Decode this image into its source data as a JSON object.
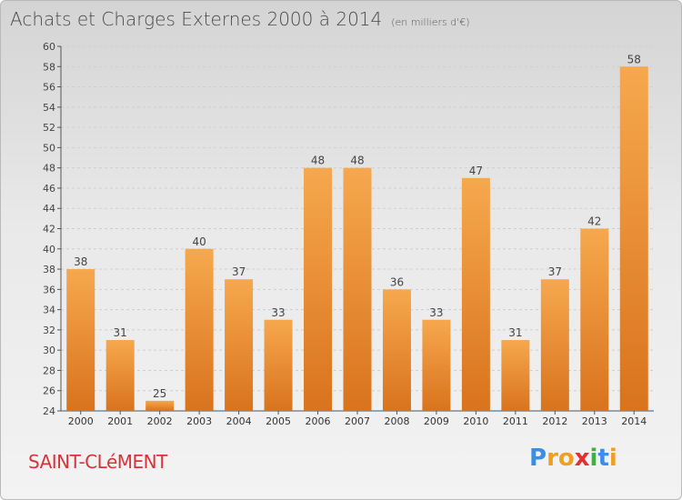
{
  "title": "Achats et Charges Externes 2000 à 2014",
  "unit": "(en milliers d'€)",
  "commune": "SAINT-CLéMENT",
  "logo": {
    "letters": [
      "P",
      "r",
      "o",
      "x",
      "i",
      "t",
      "i"
    ],
    "colors": [
      "#3a8ee6",
      "#f0a020",
      "#f0a020",
      "#e03030",
      "#40b040",
      "#3a8ee6",
      "#f0a020"
    ]
  },
  "colors": {
    "bar_top": "#f6a84e",
    "bar_bottom": "#d9731d",
    "grid": "#cfcfcf"
  },
  "chart_data": {
    "type": "bar",
    "title": "Achats et Charges Externes 2000 à 2014",
    "subtitle": "(en milliers d'€)",
    "categories": [
      "2000",
      "2001",
      "2002",
      "2003",
      "2004",
      "2005",
      "2006",
      "2007",
      "2008",
      "2009",
      "2010",
      "2011",
      "2012",
      "2013",
      "2014"
    ],
    "values": [
      38,
      31,
      25,
      40,
      37,
      33,
      48,
      48,
      36,
      33,
      47,
      31,
      37,
      42,
      58
    ],
    "ylim": [
      24,
      60
    ],
    "yticks": [
      24,
      26,
      28,
      30,
      32,
      34,
      36,
      38,
      40,
      42,
      44,
      46,
      48,
      50,
      52,
      54,
      56,
      58,
      60
    ],
    "grid": true,
    "xlabel": "",
    "ylabel": ""
  }
}
